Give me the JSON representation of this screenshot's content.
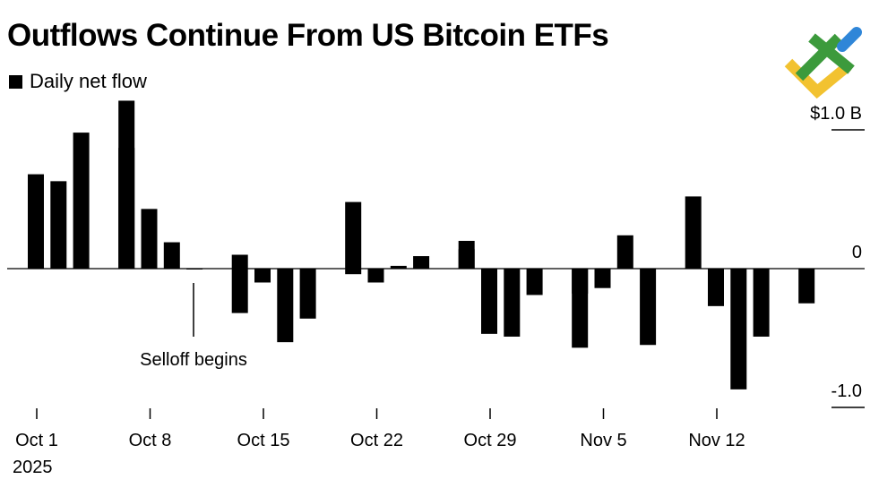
{
  "title": "Outflows Continue From US Bitcoin ETFs",
  "legend": {
    "label": "Daily net flow"
  },
  "annotation": {
    "text": "Selloff begins"
  },
  "colors": {
    "bar": "#000000",
    "axis": "#000000",
    "logo_green": "#3c9a3c",
    "logo_yellow": "#f2c230",
    "logo_blue": "#2f86d8"
  },
  "chart_data": {
    "type": "bar",
    "title": "Outflows Continue From US Bitcoin ETFs",
    "xlabel": "",
    "ylabel": "",
    "series": [
      {
        "name": "Daily net flow",
        "unit": "$B",
        "x": [
          "2025-10-01",
          "2025-10-02",
          "2025-10-03",
          "2025-10-06",
          "2025-10-07",
          "2025-10-08",
          "2025-10-09",
          "2025-10-10",
          "2025-10-13",
          "2025-10-14",
          "2025-10-15",
          "2025-10-16",
          "2025-10-17",
          "2025-10-20",
          "2025-10-21",
          "2025-10-22",
          "2025-10-23",
          "2025-10-24",
          "2025-10-27",
          "2025-10-28",
          "2025-10-29",
          "2025-10-30",
          "2025-10-31",
          "2025-11-03",
          "2025-11-04",
          "2025-11-05",
          "2025-11-06",
          "2025-11-07",
          "2025-11-10",
          "2025-11-11",
          "2025-11-12",
          "2025-11-13",
          "2025-11-14",
          "2025-11-17"
        ],
        "values": [
          0.68,
          0.63,
          0.98,
          1.21,
          0.87,
          0.43,
          0.19,
          -0.005,
          -0.32,
          0.1,
          -0.1,
          -0.53,
          -0.36,
          -0.04,
          0.48,
          -0.1,
          0.02,
          0.09,
          0.14,
          0.2,
          -0.47,
          -0.49,
          -0.19,
          -0.18,
          -0.57,
          -0.14,
          0.24,
          -0.55,
          0.005,
          0.52,
          -0.27,
          -0.87,
          -0.49,
          -0.25
        ]
      }
    ],
    "x_ticks": [
      "Oct 1",
      "Oct 8",
      "Oct 15",
      "Oct 22",
      "Oct 29",
      "Nov 5",
      "Nov 12"
    ],
    "x_year_label": "2025",
    "y_ticks": [
      {
        "value": 1.0,
        "label": "$1.0 B"
      },
      {
        "value": 0,
        "label": "0"
      },
      {
        "value": -1.0,
        "label": "-1.0"
      }
    ],
    "ylim": [
      -1.0,
      1.0
    ],
    "grid": false,
    "legend_position": "top-left"
  }
}
